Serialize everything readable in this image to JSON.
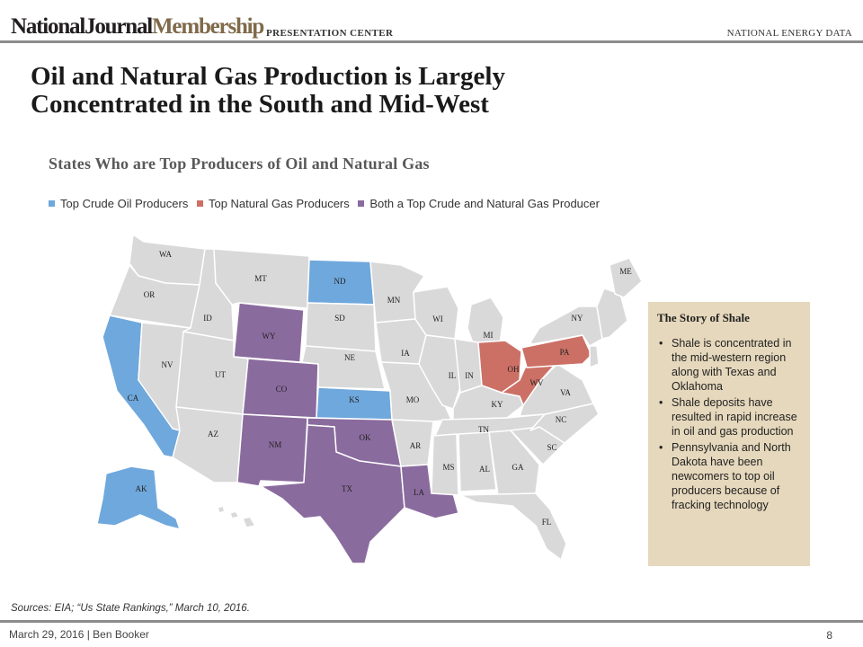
{
  "header": {
    "brand_part1": "NationalJournal",
    "brand_part2": "Membership",
    "section": "PRESENTATION CENTER",
    "topic": "NATIONAL ENERGY DATA"
  },
  "title": "Oil and Natural Gas Production is Largely Concentrated in the South and Mid-West",
  "map": {
    "subtitle": "States Who are Top Producers of Oil and Natural Gas",
    "legend": [
      {
        "label": "Top Crude Oil Producers",
        "color": "#6fa8dc"
      },
      {
        "label": "Top Natural Gas Producers",
        "color": "#cc7066"
      },
      {
        "label": "Both a Top Crude and Natural Gas Producer",
        "color": "#8a6b9e"
      }
    ],
    "colors": {
      "oil": "#6fa8dc",
      "gas": "#cc7066",
      "both": "#8a6b9e",
      "other": "#d9d9d9"
    },
    "states": [
      {
        "abbr": "WA",
        "category": "other"
      },
      {
        "abbr": "OR",
        "category": "other"
      },
      {
        "abbr": "CA",
        "category": "oil"
      },
      {
        "abbr": "NV",
        "category": "other"
      },
      {
        "abbr": "ID",
        "category": "other"
      },
      {
        "abbr": "MT",
        "category": "other"
      },
      {
        "abbr": "WY",
        "category": "both"
      },
      {
        "abbr": "UT",
        "category": "other"
      },
      {
        "abbr": "AZ",
        "category": "other"
      },
      {
        "abbr": "CO",
        "category": "both"
      },
      {
        "abbr": "NM",
        "category": "both"
      },
      {
        "abbr": "ND",
        "category": "oil"
      },
      {
        "abbr": "SD",
        "category": "other"
      },
      {
        "abbr": "NE",
        "category": "other"
      },
      {
        "abbr": "KS",
        "category": "oil"
      },
      {
        "abbr": "OK",
        "category": "both"
      },
      {
        "abbr": "TX",
        "category": "both"
      },
      {
        "abbr": "MN",
        "category": "other"
      },
      {
        "abbr": "IA",
        "category": "other"
      },
      {
        "abbr": "MO",
        "category": "other"
      },
      {
        "abbr": "AR",
        "category": "other"
      },
      {
        "abbr": "LA",
        "category": "both"
      },
      {
        "abbr": "WI",
        "category": "other"
      },
      {
        "abbr": "IL",
        "category": "other"
      },
      {
        "abbr": "MI",
        "category": "other"
      },
      {
        "abbr": "IN",
        "category": "other"
      },
      {
        "abbr": "OH",
        "category": "gas"
      },
      {
        "abbr": "KY",
        "category": "other"
      },
      {
        "abbr": "TN",
        "category": "other"
      },
      {
        "abbr": "MS",
        "category": "other"
      },
      {
        "abbr": "AL",
        "category": "other"
      },
      {
        "abbr": "GA",
        "category": "other"
      },
      {
        "abbr": "FL",
        "category": "other"
      },
      {
        "abbr": "SC",
        "category": "other"
      },
      {
        "abbr": "NC",
        "category": "other"
      },
      {
        "abbr": "VA",
        "category": "other"
      },
      {
        "abbr": "WV",
        "category": "gas"
      },
      {
        "abbr": "PA",
        "category": "gas"
      },
      {
        "abbr": "NY",
        "category": "other"
      },
      {
        "abbr": "ME",
        "category": "other"
      },
      {
        "abbr": "AK",
        "category": "oil"
      }
    ]
  },
  "story": {
    "title": "The Story of Shale",
    "bullets": [
      "Shale is concentrated in the mid-western region along with Texas and Oklahoma",
      "Shale deposits have resulted in rapid increase in oil and gas production",
      "Pennsylvania and North Dakota have been newcomers to top oil producers because of fracking technology"
    ]
  },
  "sources": "Sources: EIA; “Us State Rankings,” March 10, 2016.",
  "footer": {
    "left": "March 29, 2016  |  Ben Booker",
    "page": "8"
  }
}
